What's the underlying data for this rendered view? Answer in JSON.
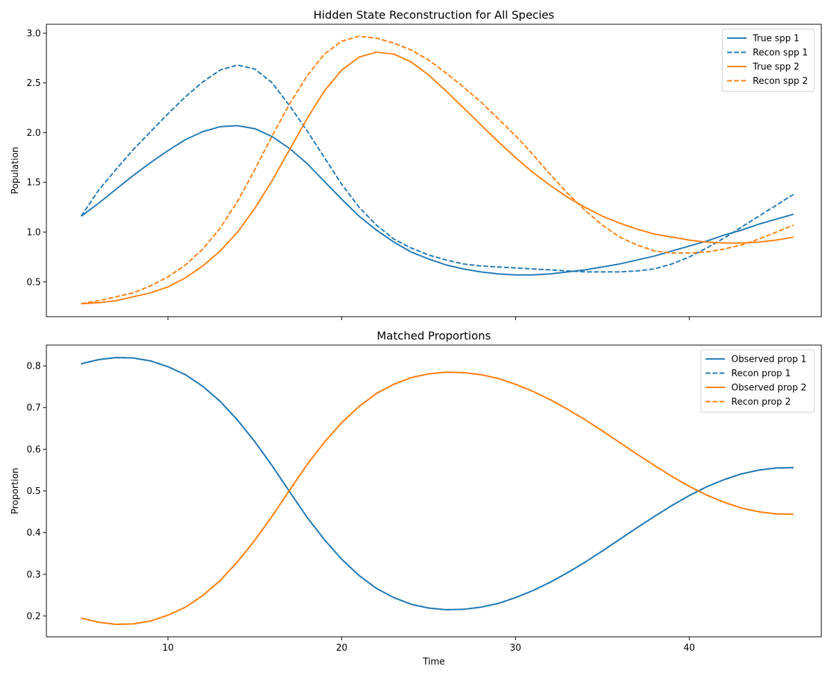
{
  "colors": {
    "blue": "#1f77b4",
    "orange": "#ff7f0e"
  },
  "chart_data": [
    {
      "type": "line",
      "title": "Hidden State Reconstruction for All Species",
      "xlabel": "",
      "ylabel": "Population",
      "xlim": [
        3,
        47.6
      ],
      "ylim": [
        0.15,
        3.09
      ],
      "xticks": [
        10,
        20,
        30,
        40
      ],
      "show_xtick_labels": false,
      "yticks": [
        0.5,
        1.0,
        1.5,
        2.0,
        2.5,
        3.0
      ],
      "ytick_labels": [
        "0.5",
        "1.0",
        "1.5",
        "2.0",
        "2.5",
        "3.0"
      ],
      "grid": false,
      "legend": "top-right",
      "x": [
        5,
        6,
        7,
        8,
        9,
        10,
        11,
        12,
        13,
        14,
        15,
        16,
        17,
        18,
        19,
        20,
        21,
        22,
        23,
        24,
        25,
        26,
        27,
        28,
        29,
        30,
        31,
        32,
        33,
        34,
        35,
        36,
        37,
        38,
        39,
        40,
        41,
        42,
        43,
        44,
        45,
        46
      ],
      "series": [
        {
          "name": "True spp 1",
          "color": "#1f77b4",
          "dash": "solid",
          "values": [
            1.16,
            1.29,
            1.43,
            1.57,
            1.7,
            1.82,
            1.93,
            2.01,
            2.06,
            2.07,
            2.04,
            1.96,
            1.84,
            1.69,
            1.51,
            1.33,
            1.16,
            1.02,
            0.9,
            0.8,
            0.73,
            0.67,
            0.63,
            0.6,
            0.58,
            0.57,
            0.57,
            0.58,
            0.6,
            0.62,
            0.65,
            0.68,
            0.72,
            0.76,
            0.81,
            0.86,
            0.91,
            0.97,
            1.02,
            1.08,
            1.13,
            1.18
          ]
        },
        {
          "name": "Recon spp 1",
          "color": "#1f77b4",
          "dash": "dashed",
          "values": [
            1.16,
            1.42,
            1.63,
            1.83,
            2.01,
            2.19,
            2.36,
            2.51,
            2.63,
            2.68,
            2.64,
            2.5,
            2.27,
            2.02,
            1.75,
            1.48,
            1.25,
            1.07,
            0.93,
            0.84,
            0.77,
            0.72,
            0.68,
            0.66,
            0.65,
            0.64,
            0.63,
            0.62,
            0.61,
            0.6,
            0.6,
            0.6,
            0.61,
            0.63,
            0.68,
            0.75,
            0.84,
            0.94,
            1.05,
            1.16,
            1.27,
            1.38
          ]
        },
        {
          "name": "True spp 2",
          "color": "#ff7f0e",
          "dash": "solid",
          "values": [
            0.28,
            0.29,
            0.31,
            0.35,
            0.39,
            0.45,
            0.54,
            0.66,
            0.81,
            1.0,
            1.24,
            1.52,
            1.83,
            2.14,
            2.42,
            2.63,
            2.76,
            2.81,
            2.79,
            2.71,
            2.58,
            2.42,
            2.25,
            2.08,
            1.91,
            1.75,
            1.6,
            1.47,
            1.35,
            1.25,
            1.16,
            1.09,
            1.03,
            0.98,
            0.95,
            0.92,
            0.9,
            0.89,
            0.89,
            0.9,
            0.92,
            0.95
          ]
        },
        {
          "name": "Recon spp 2",
          "color": "#ff7f0e",
          "dash": "dashed",
          "values": [
            0.28,
            0.31,
            0.35,
            0.39,
            0.46,
            0.55,
            0.67,
            0.83,
            1.04,
            1.31,
            1.63,
            1.97,
            2.29,
            2.57,
            2.79,
            2.92,
            2.97,
            2.95,
            2.9,
            2.83,
            2.73,
            2.6,
            2.46,
            2.31,
            2.14,
            1.97,
            1.78,
            1.58,
            1.39,
            1.22,
            1.07,
            0.95,
            0.87,
            0.81,
            0.79,
            0.79,
            0.8,
            0.83,
            0.87,
            0.93,
            1.0,
            1.07
          ]
        }
      ]
    },
    {
      "type": "line",
      "title": "Matched Proportions",
      "xlabel": "Time",
      "ylabel": "Proportion",
      "xlim": [
        3,
        47.6
      ],
      "ylim": [
        0.15,
        0.85
      ],
      "xticks": [
        10,
        20,
        30,
        40
      ],
      "show_xtick_labels": true,
      "xtick_labels": [
        "10",
        "20",
        "30",
        "40"
      ],
      "yticks": [
        0.2,
        0.3,
        0.4,
        0.5,
        0.6,
        0.7,
        0.8
      ],
      "ytick_labels": [
        "0.2",
        "0.3",
        "0.4",
        "0.5",
        "0.6",
        "0.7",
        "0.8"
      ],
      "grid": false,
      "legend": "top-right",
      "x": [
        5,
        6,
        7,
        8,
        9,
        10,
        11,
        12,
        13,
        14,
        15,
        16,
        17,
        18,
        19,
        20,
        21,
        22,
        23,
        24,
        25,
        26,
        27,
        28,
        29,
        30,
        31,
        32,
        33,
        34,
        35,
        36,
        37,
        38,
        39,
        40,
        41,
        42,
        43,
        44,
        45,
        46
      ],
      "series": [
        {
          "name": "Observed prop 1",
          "color": "#1f77b4",
          "dash": "solid",
          "values": [
            0.805,
            0.815,
            0.82,
            0.819,
            0.812,
            0.798,
            0.779,
            0.751,
            0.715,
            0.67,
            0.618,
            0.56,
            0.498,
            0.437,
            0.383,
            0.336,
            0.297,
            0.266,
            0.244,
            0.228,
            0.219,
            0.215,
            0.216,
            0.221,
            0.23,
            0.244,
            0.261,
            0.281,
            0.304,
            0.329,
            0.356,
            0.384,
            0.412,
            0.439,
            0.465,
            0.489,
            0.51,
            0.527,
            0.541,
            0.55,
            0.555,
            0.556
          ]
        },
        {
          "name": "Recon prop 1",
          "color": "#1f77b4",
          "dash": "dashed",
          "values": [
            0.805,
            0.815,
            0.82,
            0.819,
            0.812,
            0.798,
            0.779,
            0.751,
            0.715,
            0.67,
            0.618,
            0.56,
            0.498,
            0.437,
            0.383,
            0.336,
            0.297,
            0.266,
            0.244,
            0.228,
            0.219,
            0.215,
            0.216,
            0.221,
            0.23,
            0.244,
            0.261,
            0.281,
            0.304,
            0.329,
            0.356,
            0.384,
            0.412,
            0.439,
            0.465,
            0.489,
            0.51,
            0.527,
            0.541,
            0.55,
            0.555,
            0.556
          ]
        },
        {
          "name": "Observed prop 2",
          "color": "#ff7f0e",
          "dash": "solid",
          "values": [
            0.195,
            0.185,
            0.18,
            0.181,
            0.188,
            0.202,
            0.221,
            0.249,
            0.285,
            0.33,
            0.382,
            0.44,
            0.502,
            0.563,
            0.617,
            0.664,
            0.703,
            0.734,
            0.756,
            0.772,
            0.781,
            0.785,
            0.784,
            0.779,
            0.77,
            0.756,
            0.739,
            0.719,
            0.696,
            0.671,
            0.644,
            0.616,
            0.588,
            0.561,
            0.535,
            0.511,
            0.49,
            0.473,
            0.459,
            0.45,
            0.445,
            0.444
          ]
        },
        {
          "name": "Recon prop 2",
          "color": "#ff7f0e",
          "dash": "dashed",
          "values": [
            0.195,
            0.185,
            0.18,
            0.181,
            0.188,
            0.202,
            0.221,
            0.249,
            0.285,
            0.33,
            0.382,
            0.44,
            0.502,
            0.563,
            0.617,
            0.664,
            0.703,
            0.734,
            0.756,
            0.772,
            0.781,
            0.785,
            0.784,
            0.779,
            0.77,
            0.756,
            0.739,
            0.719,
            0.696,
            0.671,
            0.644,
            0.616,
            0.588,
            0.561,
            0.535,
            0.511,
            0.49,
            0.473,
            0.459,
            0.45,
            0.445,
            0.444
          ]
        }
      ]
    }
  ]
}
